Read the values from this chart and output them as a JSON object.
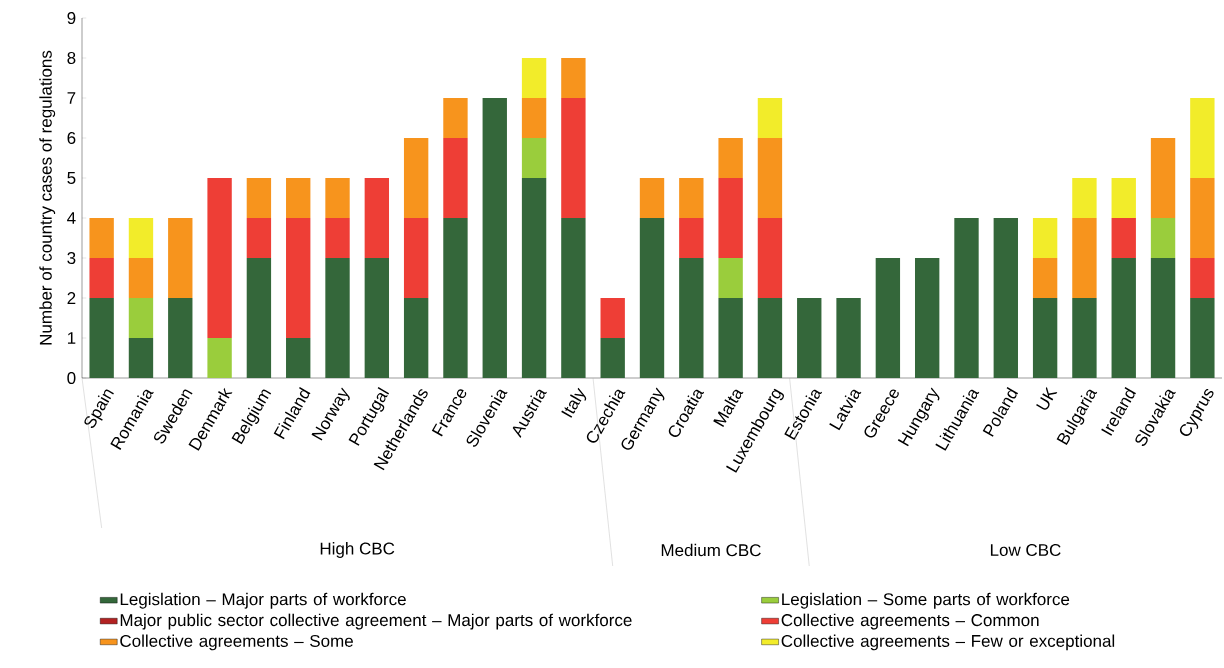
{
  "chart_data": {
    "type": "bar",
    "stacked": true,
    "ylabel": "Number of country cases of regulations",
    "categories": [
      "Spain",
      "Romania",
      "Sweden",
      "Denmark",
      "Belgium",
      "Finland",
      "Norway",
      "Portugal",
      "Netherlands",
      "France",
      "Slovenia",
      "Austria",
      "Italy",
      "Czechia",
      "Germany",
      "Croatia",
      "Malta",
      "Luxembourg",
      "Estonia",
      "Latvia",
      "Greece",
      "Hungary",
      "Lithuania",
      "Poland",
      "UK",
      "Bulgaria",
      "Ireland",
      "Slovakia",
      "Cyprus"
    ],
    "series": [
      {
        "name": "Legislation – Major parts of workforce",
        "color": "#34673a",
        "values": [
          2,
          1,
          2,
          null,
          3,
          1,
          3,
          3,
          2,
          4,
          7,
          5,
          4,
          1,
          4,
          3,
          2,
          2,
          2,
          2,
          3,
          3,
          4,
          4,
          2,
          2,
          3,
          3,
          2
        ]
      },
      {
        "name": "Legislation – Some parts of workforce",
        "color": "#9acd3c",
        "values": [
          null,
          1,
          null,
          1,
          null,
          null,
          null,
          null,
          null,
          null,
          null,
          1,
          null,
          null,
          null,
          null,
          1,
          null,
          null,
          null,
          null,
          null,
          null,
          null,
          null,
          null,
          null,
          1,
          null
        ]
      },
      {
        "name": "Major public sector  collective agreement – Major parts of workforce",
        "color": "#b22222",
        "values": [
          null,
          null,
          null,
          null,
          null,
          null,
          null,
          null,
          null,
          null,
          null,
          null,
          null,
          null,
          null,
          null,
          null,
          null,
          null,
          null,
          null,
          null,
          null,
          null,
          null,
          null,
          null,
          null,
          null
        ]
      },
      {
        "name": "Collective agreements – Common",
        "color": "#ee3e36",
        "values": [
          1,
          null,
          null,
          4,
          1,
          3,
          1,
          2,
          2,
          2,
          null,
          null,
          3,
          1,
          null,
          1,
          2,
          2,
          null,
          null,
          null,
          null,
          null,
          null,
          null,
          null,
          1,
          null,
          1
        ]
      },
      {
        "name": "Collective agreements – Some",
        "color": "#f7941d",
        "values": [
          1,
          1,
          2,
          null,
          1,
          1,
          1,
          null,
          2,
          1,
          null,
          1,
          1,
          null,
          1,
          1,
          1,
          2,
          null,
          null,
          null,
          null,
          null,
          null,
          1,
          2,
          null,
          2,
          2
        ]
      },
      {
        "name": "Collective agreements – Few or exceptional",
        "color": "#f2ec2a",
        "values": [
          null,
          1,
          null,
          null,
          null,
          null,
          null,
          null,
          null,
          null,
          null,
          1,
          null,
          null,
          null,
          null,
          null,
          1,
          null,
          null,
          null,
          null,
          null,
          null,
          1,
          1,
          1,
          null,
          2
        ]
      }
    ],
    "ylim": [
      0,
      9
    ],
    "yticks": [
      0,
      1,
      2,
      3,
      4,
      5,
      6,
      7,
      8,
      9
    ],
    "annotations": [
      "High CBC",
      "Medium CBC",
      "Low CBC"
    ],
    "legend": "bottom"
  }
}
